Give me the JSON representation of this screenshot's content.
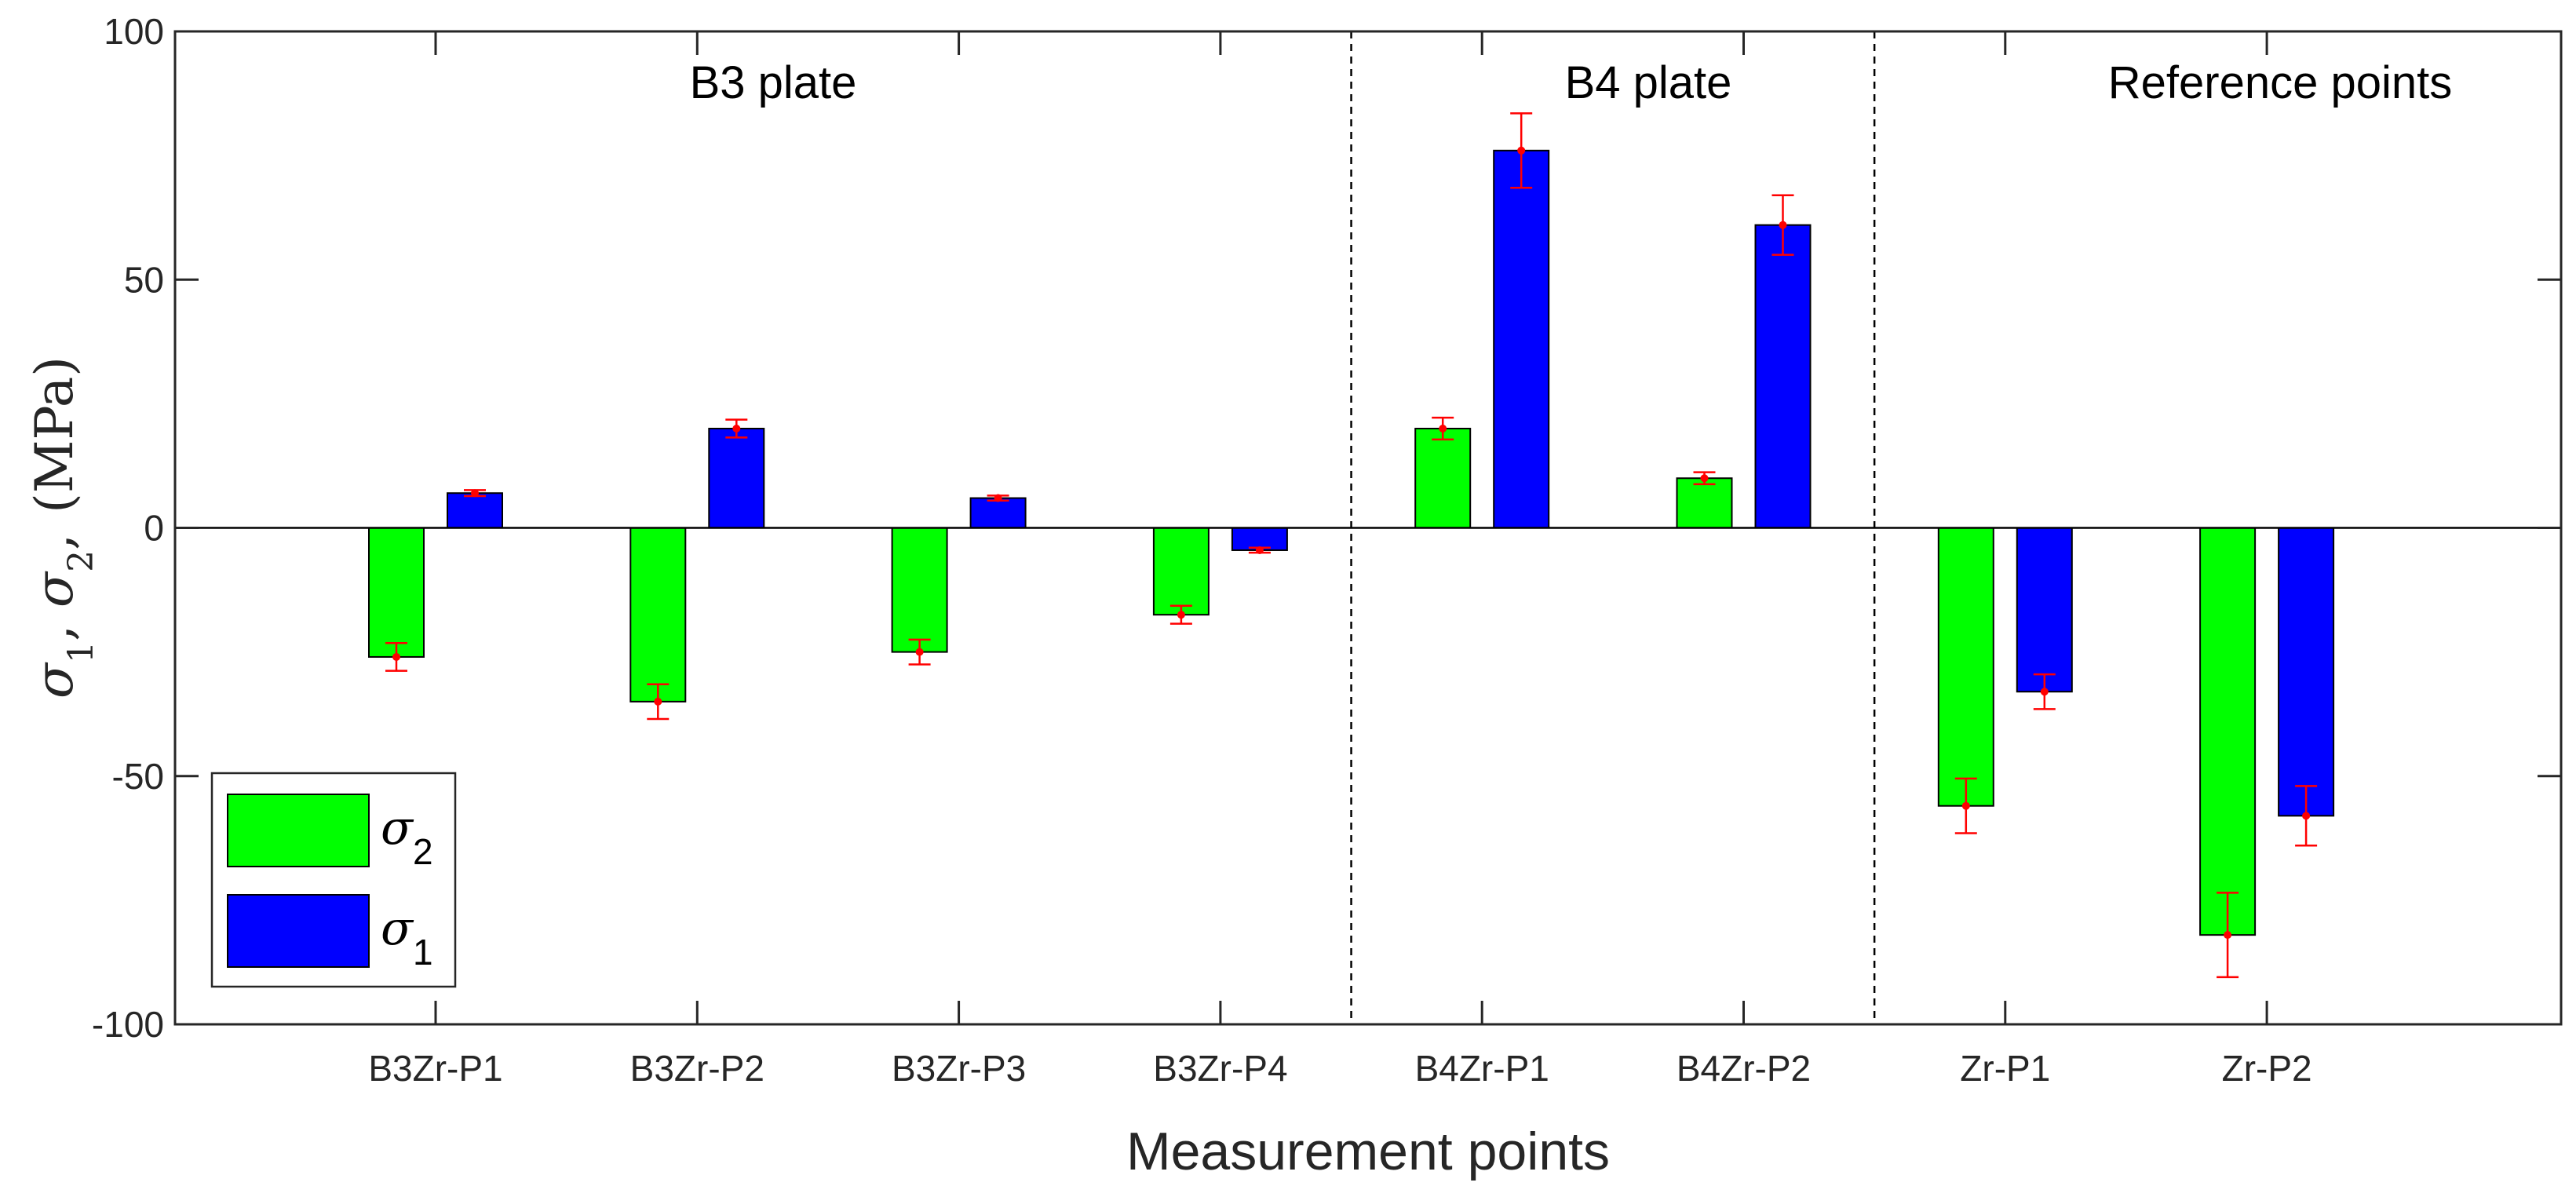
{
  "chart_data": {
    "type": "bar",
    "xlabel": "Measurement points",
    "ylabel": {
      "sigma": "σ",
      "sub1": "1",
      "sub2": "2",
      "sep": ",",
      "unit": "(MPa)"
    },
    "ylim": [
      -100,
      100
    ],
    "yticks": [
      100,
      50,
      0,
      -50,
      -100
    ],
    "categories": [
      "B3Zr-P1",
      "B3Zr-P2",
      "B3Zr-P3",
      "B3Zr-P4",
      "B4Zr-P1",
      "B4Zr-P2",
      "Zr-P1",
      "Zr-P2"
    ],
    "series": [
      {
        "name": "σ2",
        "color": "#00ff00",
        "values": [
          -26,
          -35,
          -25,
          -17.5,
          20,
          10,
          -56,
          -82
        ],
        "errors": [
          2.8,
          3.5,
          2.5,
          1.8,
          2.2,
          1.2,
          5.5,
          8.5
        ]
      },
      {
        "name": "σ1",
        "color": "#0000ff",
        "values": [
          7,
          20,
          6,
          -4.5,
          76,
          61,
          -33,
          -58
        ],
        "errors": [
          0.6,
          1.8,
          0.5,
          0.5,
          7.5,
          6,
          3.5,
          6
        ]
      }
    ],
    "error_bar_color": "#ff0000",
    "regions": [
      {
        "label": "B3 plate"
      },
      {
        "label": "B4 plate"
      },
      {
        "label": "Reference points"
      }
    ],
    "dividers_after_category": [
      3,
      5
    ],
    "legend": {
      "placement": "bottom-left",
      "entries": [
        {
          "sigma": "σ",
          "sub": "2",
          "color": "#00ff00"
        },
        {
          "sigma": "σ",
          "sub": "1",
          "color": "#0000ff"
        }
      ]
    },
    "grid": false
  }
}
